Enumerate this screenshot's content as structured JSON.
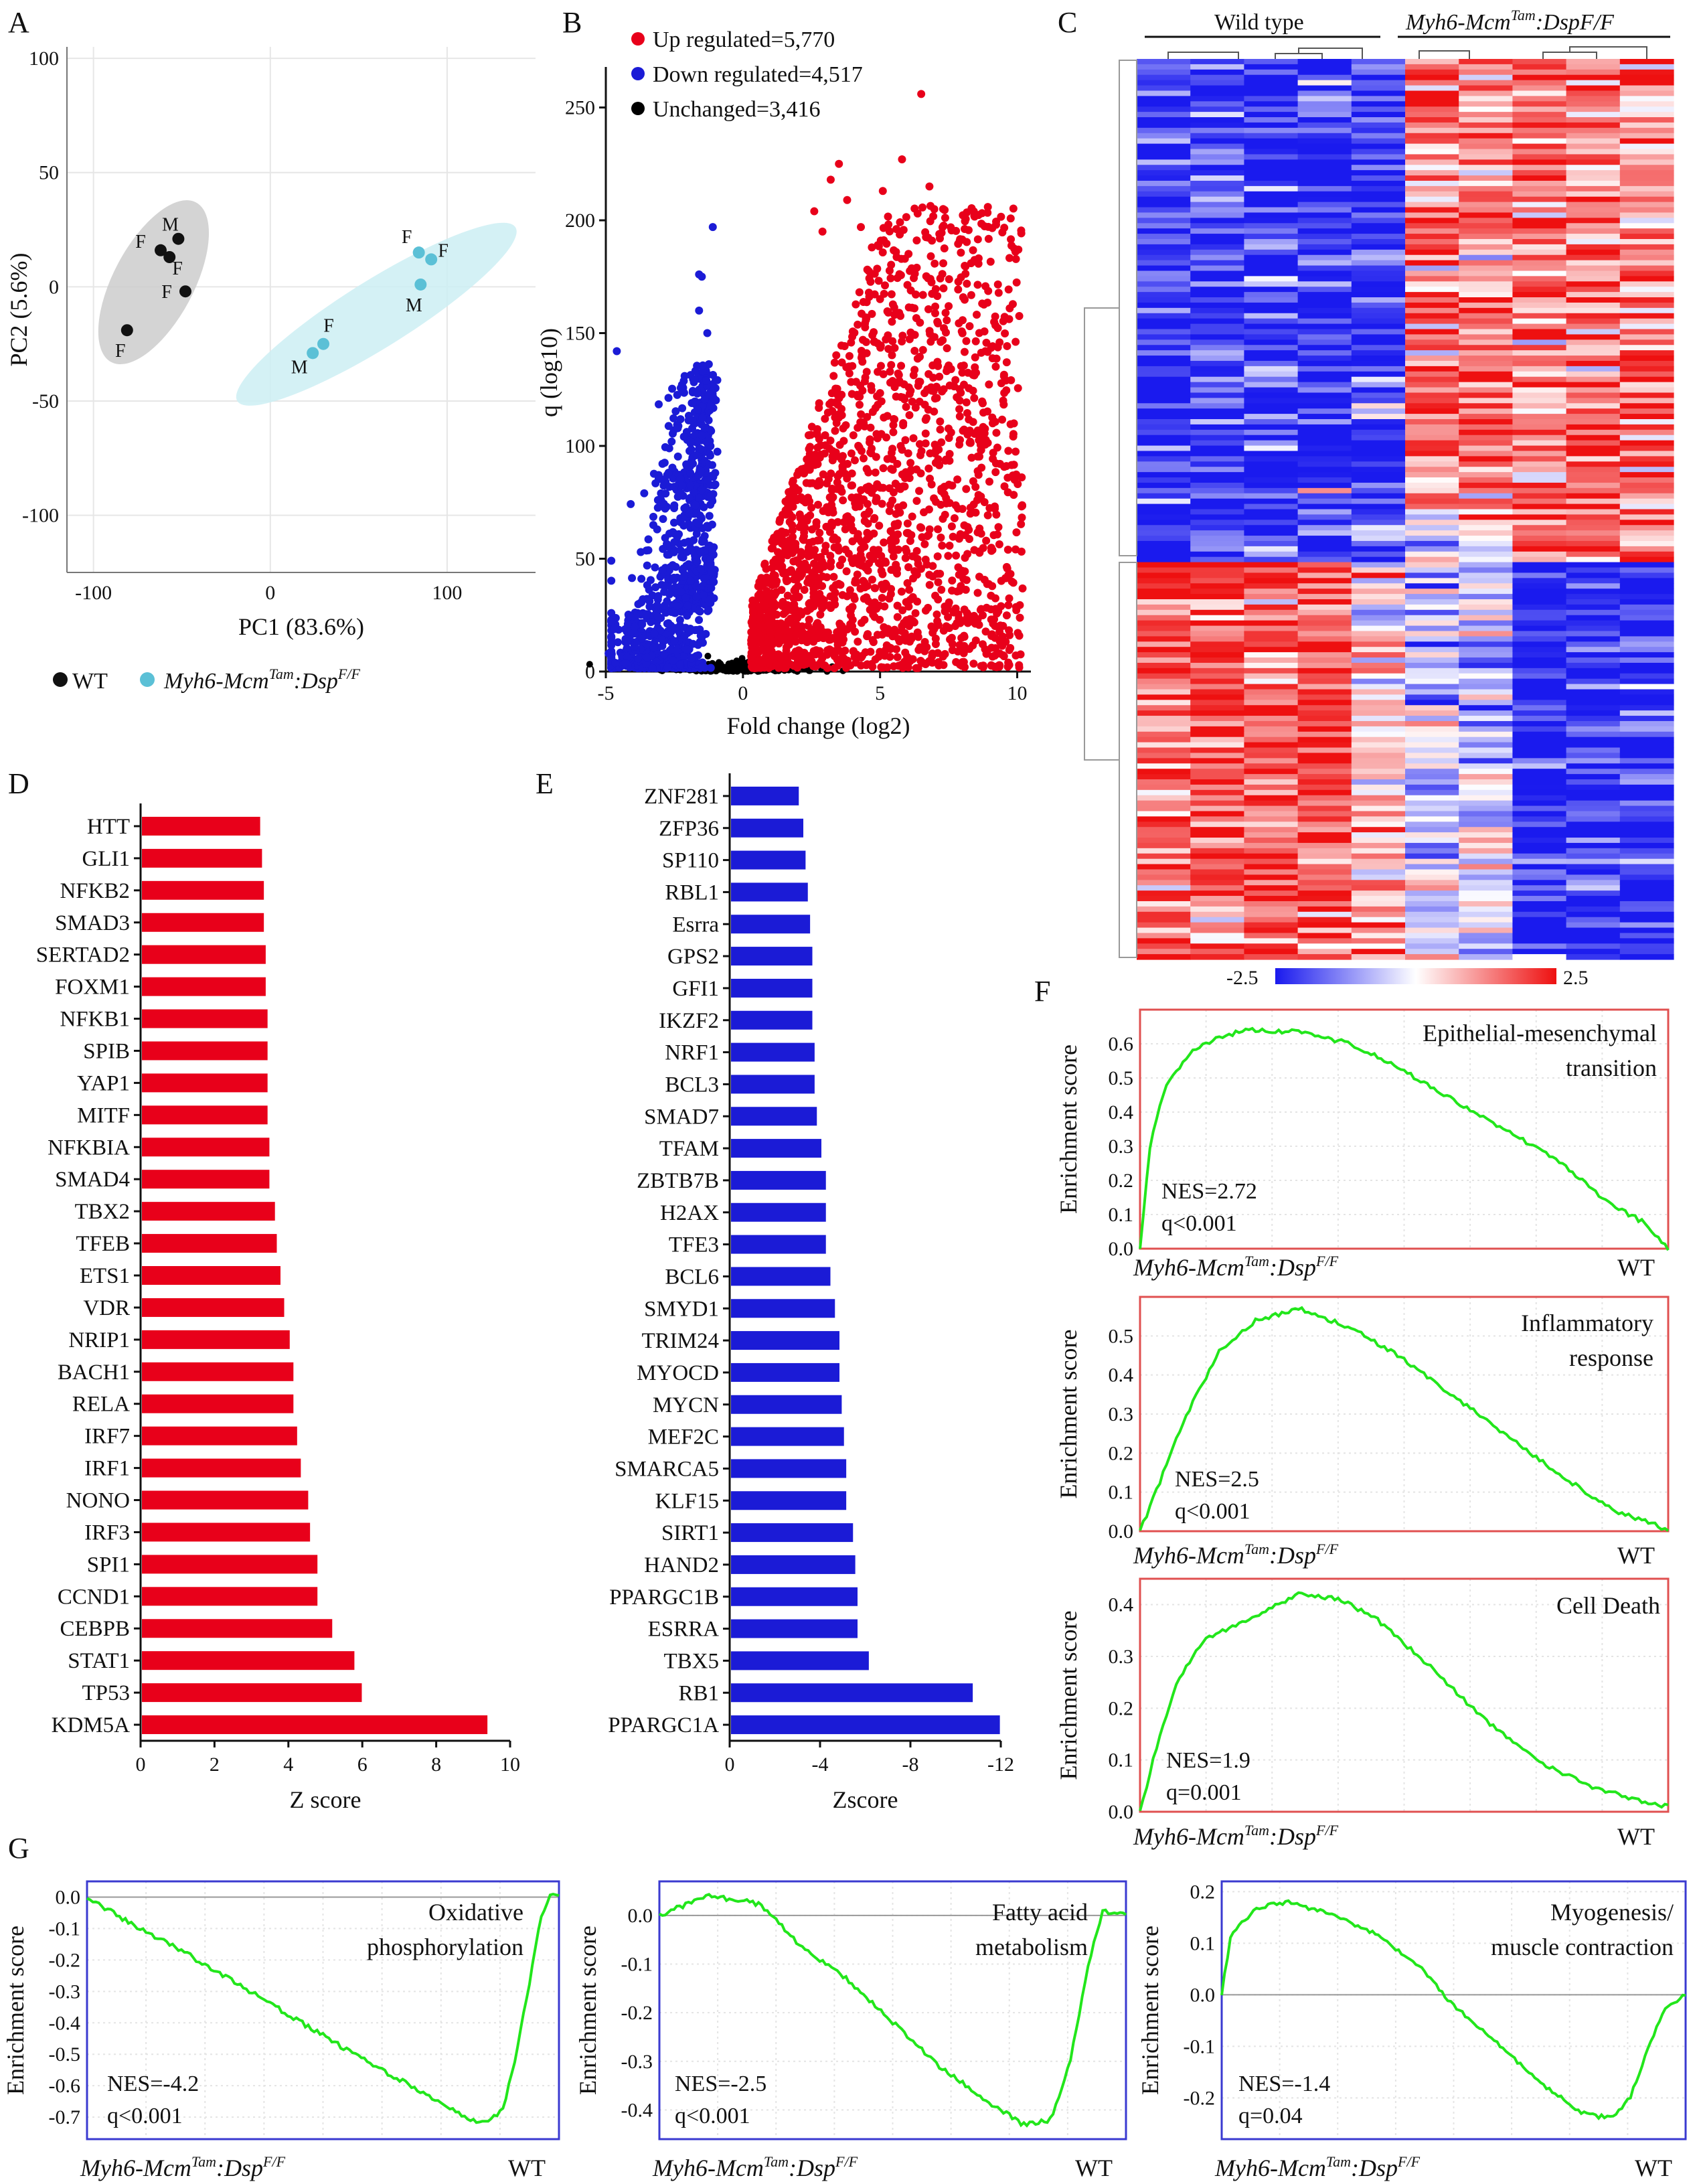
{
  "panels": {
    "A": "A",
    "B": "B",
    "C": "C",
    "D": "D",
    "E": "E",
    "F": "F",
    "G": "G"
  },
  "colors": {
    "wt": "#111111",
    "ko": "#5bc0d6",
    "up": "#e8001a",
    "down": "#1b1bd6",
    "unchanged": "#000000",
    "bar_d": "#e8001a",
    "bar_e": "#1b1bd6",
    "gsea_line": "#22e61b",
    "gsea_box_f": "#e05050",
    "gsea_box_g": "#3a3ad0",
    "hm_low": "#1a1aee",
    "hm_mid": "#ffffff",
    "hm_high": "#ee1010"
  },
  "legend_a": {
    "wt": "WT",
    "ko_prefix": "Myh6-Mcm",
    "ko_sup": "Tam",
    "ko_mid": ":Dsp",
    "ko_sup2": "F/F"
  },
  "heatmap": {
    "group1": "Wild type",
    "group2_prefix": "Myh6-Mcm",
    "group2_sup": "Tam",
    "group2_suffix": ":DspF/F",
    "scale_min": "-2.5",
    "scale_max": "2.5"
  },
  "gsea_xlabels": {
    "left_prefix": "Myh6-Mcm",
    "left_sup": "Tam",
    "left_mid": ":Dsp",
    "left_sup2": "F/F",
    "right": "WT"
  },
  "chart_data": [
    {
      "id": "A",
      "type": "scatter",
      "xlabel": "PC1 (83.6%)",
      "ylabel": "PC2 (5.6%)",
      "xlim": [
        -115,
        150
      ],
      "ylim": [
        -125,
        105
      ],
      "xticks": [
        "-100",
        "0",
        "100"
      ],
      "yticks": [
        "100",
        "50",
        "0",
        "-50",
        "-100"
      ],
      "grid": true,
      "series": [
        {
          "name": "WT",
          "points": [
            {
              "x": -52,
              "y": 21,
              "label": "M"
            },
            {
              "x": -62,
              "y": 16,
              "label": "F"
            },
            {
              "x": -57,
              "y": 13,
              "label": "F"
            },
            {
              "x": -48,
              "y": -2,
              "label": "F"
            },
            {
              "x": -81,
              "y": -19,
              "label": "F"
            }
          ]
        },
        {
          "name": "Myh6-McmTam:DspF/F",
          "points": [
            {
              "x": 84,
              "y": 15,
              "label": "F"
            },
            {
              "x": 91,
              "y": 12,
              "label": "F"
            },
            {
              "x": 85,
              "y": 1,
              "label": "M"
            },
            {
              "x": 30,
              "y": -25,
              "label": "F"
            },
            {
              "x": 24,
              "y": -29,
              "label": "M"
            }
          ]
        }
      ]
    },
    {
      "id": "B",
      "type": "scatter",
      "xlabel": "Fold change (log2)",
      "ylabel": "q (log10)",
      "xlim": [
        -5,
        10.5
      ],
      "ylim": [
        0,
        265
      ],
      "xticks": [
        "-5",
        "0",
        "5",
        "10"
      ],
      "yticks": [
        "0",
        "50",
        "100",
        "150",
        "200",
        "250"
      ],
      "legend": [
        {
          "name": "Up regulated=5,770",
          "key": "up"
        },
        {
          "name": "Down regulated=4,517",
          "key": "down"
        },
        {
          "name": "Unchanged=3,416",
          "key": "unchanged"
        }
      ],
      "outliers_up": [
        [
          6.5,
          256
        ],
        [
          3.5,
          225
        ],
        [
          5.8,
          227
        ],
        [
          3.2,
          218
        ],
        [
          6.8,
          215
        ],
        [
          3.8,
          209
        ],
        [
          2.6,
          204
        ],
        [
          5.1,
          213
        ],
        [
          2.9,
          195
        ],
        [
          4.3,
          197
        ],
        [
          7.3,
          205
        ],
        [
          4.7,
          188
        ]
      ],
      "outliers_down": [
        [
          -1.1,
          197
        ],
        [
          -1.6,
          176
        ],
        [
          -1.5,
          175
        ],
        [
          -1.6,
          160
        ],
        [
          -4.6,
          142
        ],
        [
          -1.3,
          150
        ],
        [
          -3.6,
          79
        ],
        [
          -3.1,
          76
        ],
        [
          -4.8,
          22
        ],
        [
          -4.9,
          8
        ]
      ]
    },
    {
      "id": "D",
      "type": "bar",
      "orientation": "horizontal",
      "xlabel": "Z score",
      "xlim": [
        0,
        10
      ],
      "xticks": [
        "0",
        "2",
        "4",
        "6",
        "8",
        "10"
      ],
      "categories": [
        "HTT",
        "GLI1",
        "NFKB2",
        "SMAD3",
        "SERTAD2",
        "FOXM1",
        "NFKB1",
        "SPIB",
        "YAP1",
        "MITF",
        "NFKBIA",
        "SMAD4",
        "TBX2",
        "TFEB",
        "ETS1",
        "VDR",
        "NRIP1",
        "BACH1",
        "RELA",
        "IRF7",
        "IRF1",
        "NONO",
        "IRF3",
        "SPI1",
        "CCND1",
        "CEBPB",
        "STAT1",
        "TP53",
        "KDM5A"
      ],
      "values": [
        3.2,
        3.25,
        3.3,
        3.3,
        3.35,
        3.35,
        3.4,
        3.4,
        3.4,
        3.4,
        3.45,
        3.45,
        3.6,
        3.65,
        3.75,
        3.85,
        4.0,
        4.1,
        4.1,
        4.2,
        4.3,
        4.5,
        4.55,
        4.75,
        4.75,
        5.15,
        5.75,
        5.95,
        9.35
      ]
    },
    {
      "id": "E",
      "type": "bar",
      "orientation": "horizontal",
      "xlabel": "Zscore",
      "xlim": [
        0,
        -12
      ],
      "xticks": [
        "0",
        "-4",
        "-8",
        "-12"
      ],
      "categories": [
        "ZNF281",
        "ZFP36",
        "SP110",
        "RBL1",
        "Esrra",
        "GPS2",
        "GFI1",
        "IKZF2",
        "NRF1",
        "BCL3",
        "SMAD7",
        "TFAM",
        "ZBTB7B",
        "H2AX",
        "TFE3",
        "BCL6",
        "SMYD1",
        "TRIM24",
        "MYOCD",
        "MYCN",
        "MEF2C",
        "SMARCA5",
        "KLF15",
        "SIRT1",
        "HAND2",
        "PPARGC1B",
        "ESRRA",
        "TBX5",
        "RB1",
        "PPARGC1A"
      ],
      "values": [
        -3.0,
        -3.2,
        -3.3,
        -3.4,
        -3.5,
        -3.6,
        -3.6,
        -3.6,
        -3.7,
        -3.7,
        -3.8,
        -4.0,
        -4.2,
        -4.2,
        -4.2,
        -4.4,
        -4.6,
        -4.8,
        -4.8,
        -4.9,
        -5.0,
        -5.1,
        -5.1,
        -5.4,
        -5.5,
        -5.6,
        -5.6,
        -6.1,
        -10.7,
        -11.9
      ]
    },
    {
      "id": "F1",
      "type": "line",
      "ylabel": "Enrichment score",
      "title_lines": [
        "Epithelial-mesenchymal",
        "transition"
      ],
      "ylim": [
        0,
        0.7
      ],
      "yticks": [
        "0.0",
        "0.1",
        "0.2",
        "0.3",
        "0.4",
        "0.5",
        "0.6"
      ],
      "nes": "NES=2.72",
      "q": "q<0.001",
      "points": [
        [
          0,
          0
        ],
        [
          0.02,
          0.32
        ],
        [
          0.05,
          0.48
        ],
        [
          0.1,
          0.58
        ],
        [
          0.15,
          0.62
        ],
        [
          0.2,
          0.64
        ],
        [
          0.3,
          0.635
        ],
        [
          0.4,
          0.6
        ],
        [
          0.5,
          0.52
        ],
        [
          0.6,
          0.43
        ],
        [
          0.7,
          0.34
        ],
        [
          0.8,
          0.25
        ],
        [
          0.88,
          0.14
        ],
        [
          0.95,
          0.08
        ],
        [
          1,
          0
        ]
      ]
    },
    {
      "id": "F2",
      "type": "line",
      "ylabel": "Enrichment score",
      "title_lines": [
        "Inflammatory",
        "response"
      ],
      "ylim": [
        0,
        0.6
      ],
      "yticks": [
        "0.0",
        "0.1",
        "0.2",
        "0.3",
        "0.4",
        "0.5"
      ],
      "nes": "NES=2.5",
      "q": "q<0.001",
      "points": [
        [
          0,
          0
        ],
        [
          0.03,
          0.1
        ],
        [
          0.07,
          0.24
        ],
        [
          0.1,
          0.33
        ],
        [
          0.15,
          0.46
        ],
        [
          0.22,
          0.54
        ],
        [
          0.3,
          0.57
        ],
        [
          0.4,
          0.52
        ],
        [
          0.5,
          0.44
        ],
        [
          0.6,
          0.34
        ],
        [
          0.7,
          0.24
        ],
        [
          0.8,
          0.14
        ],
        [
          0.9,
          0.05
        ],
        [
          0.97,
          0.02
        ],
        [
          1,
          0
        ]
      ]
    },
    {
      "id": "F3",
      "type": "line",
      "ylabel": "Enrichment score",
      "title_lines": [
        "Cell Death"
      ],
      "ylim": [
        0,
        0.45
      ],
      "yticks": [
        "0.0",
        "0.1",
        "0.2",
        "0.3",
        "0.4"
      ],
      "nes": "NES=1.9",
      "q": "q=0.001",
      "points": [
        [
          0,
          0
        ],
        [
          0.03,
          0.12
        ],
        [
          0.07,
          0.25
        ],
        [
          0.12,
          0.33
        ],
        [
          0.2,
          0.37
        ],
        [
          0.3,
          0.42
        ],
        [
          0.38,
          0.41
        ],
        [
          0.45,
          0.37
        ],
        [
          0.55,
          0.28
        ],
        [
          0.65,
          0.18
        ],
        [
          0.75,
          0.1
        ],
        [
          0.85,
          0.05
        ],
        [
          0.95,
          0.02
        ],
        [
          1,
          0.01
        ]
      ]
    },
    {
      "id": "G1",
      "type": "line",
      "ylabel": "Enrichment score",
      "title_lines": [
        "Oxidative",
        "phosphorylation"
      ],
      "ylim": [
        -0.77,
        0.05
      ],
      "yticks": [
        "0.0",
        "-0.1",
        "-0.2",
        "-0.3",
        "-0.4",
        "-0.5",
        "-0.6",
        "-0.7"
      ],
      "nes": "NES=-4.2",
      "q": "q<0.001",
      "points": [
        [
          0,
          0
        ],
        [
          0.1,
          -0.09
        ],
        [
          0.2,
          -0.17
        ],
        [
          0.3,
          -0.26
        ],
        [
          0.4,
          -0.35
        ],
        [
          0.5,
          -0.44
        ],
        [
          0.6,
          -0.53
        ],
        [
          0.7,
          -0.61
        ],
        [
          0.8,
          -0.7
        ],
        [
          0.84,
          -0.72
        ],
        [
          0.88,
          -0.68
        ],
        [
          0.91,
          -0.5
        ],
        [
          0.94,
          -0.25
        ],
        [
          0.96,
          -0.08
        ],
        [
          0.98,
          0.01
        ],
        [
          1,
          0
        ]
      ]
    },
    {
      "id": "G2",
      "type": "line",
      "ylabel": "Enrichment score",
      "title_lines": [
        "Fatty acid",
        "metabolism"
      ],
      "ylim": [
        -0.46,
        0.07
      ],
      "yticks": [
        "0.0",
        "-0.1",
        "-0.2",
        "-0.3",
        "-0.4"
      ],
      "nes": "NES=-2.5",
      "q": "q<0.001",
      "points": [
        [
          0,
          0.0
        ],
        [
          0.05,
          0.02
        ],
        [
          0.1,
          0.04
        ],
        [
          0.18,
          0.03
        ],
        [
          0.22,
          0.02
        ],
        [
          0.3,
          -0.06
        ],
        [
          0.4,
          -0.13
        ],
        [
          0.5,
          -0.22
        ],
        [
          0.6,
          -0.31
        ],
        [
          0.7,
          -0.38
        ],
        [
          0.78,
          -0.43
        ],
        [
          0.84,
          -0.42
        ],
        [
          0.88,
          -0.3
        ],
        [
          0.92,
          -0.1
        ],
        [
          0.95,
          0.01
        ],
        [
          1,
          0
        ]
      ]
    },
    {
      "id": "G3",
      "type": "line",
      "ylabel": "Enrichment score",
      "title_lines": [
        "Myogenesis/",
        "muscle contraction"
      ],
      "ylim": [
        -0.28,
        0.22
      ],
      "yticks": [
        "0.2",
        "0.1",
        "0.0",
        "-0.1",
        "-0.2"
      ],
      "nes": "NES=-1.4",
      "q": "q=0.04",
      "points": [
        [
          0,
          0.0
        ],
        [
          0.02,
          0.12
        ],
        [
          0.08,
          0.17
        ],
        [
          0.15,
          0.18
        ],
        [
          0.25,
          0.15
        ],
        [
          0.33,
          0.12
        ],
        [
          0.42,
          0.06
        ],
        [
          0.5,
          -0.02
        ],
        [
          0.6,
          -0.1
        ],
        [
          0.7,
          -0.18
        ],
        [
          0.78,
          -0.23
        ],
        [
          0.84,
          -0.24
        ],
        [
          0.88,
          -0.2
        ],
        [
          0.92,
          -0.1
        ],
        [
          0.96,
          -0.02
        ],
        [
          1,
          0.0
        ]
      ]
    }
  ]
}
